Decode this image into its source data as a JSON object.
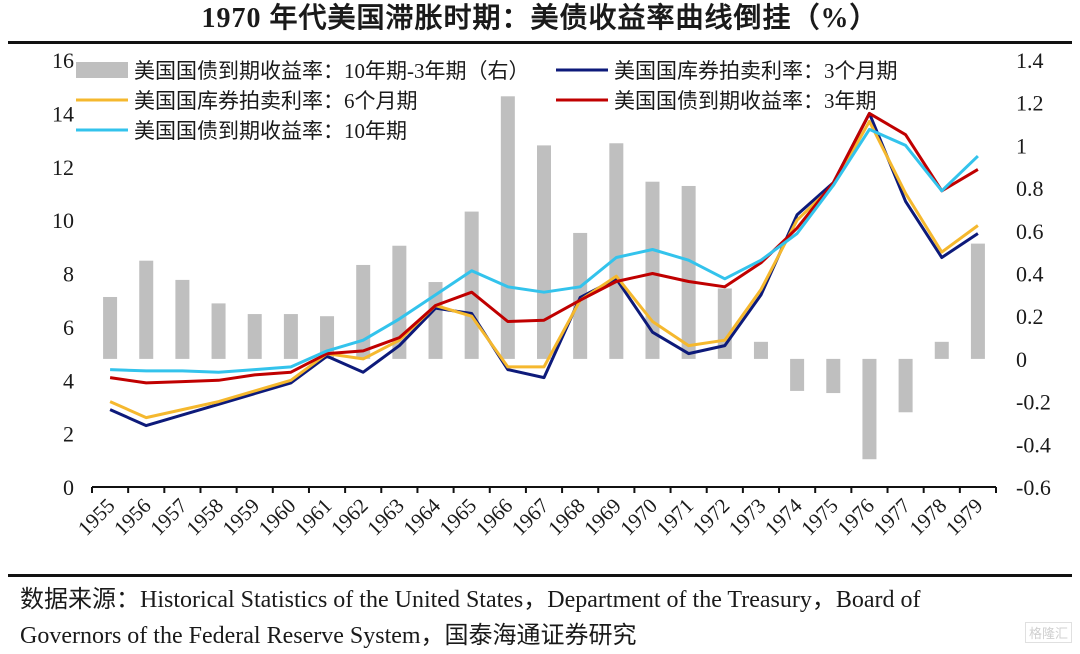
{
  "title": "1970 年代美国滞胀时期：美债收益率曲线倒挂（%）",
  "source": {
    "line1": "数据来源：Historical Statistics of the United States，Department of the Treasury，Board of",
    "line2": "Governors of the Federal Reserve System，国泰海通证券研究"
  },
  "watermark": "格隆汇",
  "chart_data": {
    "type": "bar+line",
    "title": "1970 年代美国滞胀时期：美债收益率曲线倒挂（%）",
    "categories": [
      "1955",
      "1956",
      "1957",
      "1958",
      "1959",
      "1960",
      "1961",
      "1962",
      "1963",
      "1964",
      "1965",
      "1966",
      "1967",
      "1968",
      "1969",
      "1970",
      "1971",
      "1972",
      "1973",
      "1974",
      "1975",
      "1976",
      "1977",
      "1978",
      "1979"
    ],
    "left_axis": {
      "ylim": [
        0,
        16
      ],
      "ticks": [
        "0",
        "2",
        "4",
        "6",
        "8",
        "10",
        "12",
        "14",
        "16"
      ]
    },
    "right_axis": {
      "ylim": [
        -0.6,
        1.4
      ],
      "ticks": [
        "-0.6",
        "-0.4",
        "-0.2",
        "0",
        "0.2",
        "0.4",
        "0.6",
        "0.8",
        "1",
        "1.2",
        "1.4"
      ]
    },
    "legend_position": "top",
    "series": [
      {
        "name": "美国国债到期收益率：10年期-3年期（右）",
        "kind": "bar",
        "axis": "right",
        "color": "#bfbfbf",
        "values": [
          0.29,
          0.46,
          0.37,
          0.26,
          0.21,
          0.21,
          0.2,
          0.44,
          0.53,
          0.36,
          0.69,
          1.23,
          1.0,
          0.59,
          1.01,
          0.83,
          0.81,
          0.33,
          0.08,
          -0.15,
          -0.16,
          -0.47,
          -0.25,
          0.08,
          0.54
        ]
      },
      {
        "name": "美国国库券拍卖利率：3个月期",
        "kind": "line",
        "axis": "left",
        "color": "#0d1a7a",
        "values": [
          2.9,
          2.3,
          2.7,
          3.1,
          3.5,
          3.9,
          4.9,
          4.3,
          5.3,
          6.7,
          6.5,
          4.4,
          4.1,
          7.1,
          7.8,
          5.8,
          5.0,
          5.3,
          7.2,
          10.2,
          11.4,
          14.0,
          10.7,
          8.6,
          9.5
        ]
      },
      {
        "name": "美国国库券拍卖利率：6个月期",
        "kind": "line",
        "axis": "left",
        "color": "#f5b82e",
        "values": [
          3.2,
          2.6,
          2.9,
          3.2,
          3.6,
          4.0,
          5.0,
          4.8,
          5.5,
          6.8,
          6.4,
          4.5,
          4.5,
          7.0,
          7.9,
          6.2,
          5.3,
          5.5,
          7.4,
          10.0,
          11.3,
          13.7,
          11.0,
          8.8,
          9.8
        ]
      },
      {
        "name": "美国国债到期收益率：3年期",
        "kind": "line",
        "axis": "left",
        "color": "#c00000",
        "values": [
          4.1,
          3.9,
          3.95,
          4.0,
          4.2,
          4.3,
          5.0,
          5.1,
          5.6,
          6.8,
          7.3,
          6.2,
          6.25,
          7.0,
          7.7,
          8.0,
          7.7,
          7.5,
          8.4,
          9.7,
          11.4,
          14.0,
          13.2,
          11.1,
          11.9
        ]
      },
      {
        "name": "美国国债到期收益率：10年期",
        "kind": "line",
        "axis": "left",
        "color": "#33c3ec",
        "values": [
          4.4,
          4.35,
          4.35,
          4.3,
          4.4,
          4.5,
          5.1,
          5.5,
          6.3,
          7.2,
          8.1,
          7.5,
          7.3,
          7.5,
          8.6,
          8.9,
          8.5,
          7.8,
          8.5,
          9.5,
          11.3,
          13.4,
          12.8,
          11.1,
          12.4
        ]
      }
    ]
  }
}
